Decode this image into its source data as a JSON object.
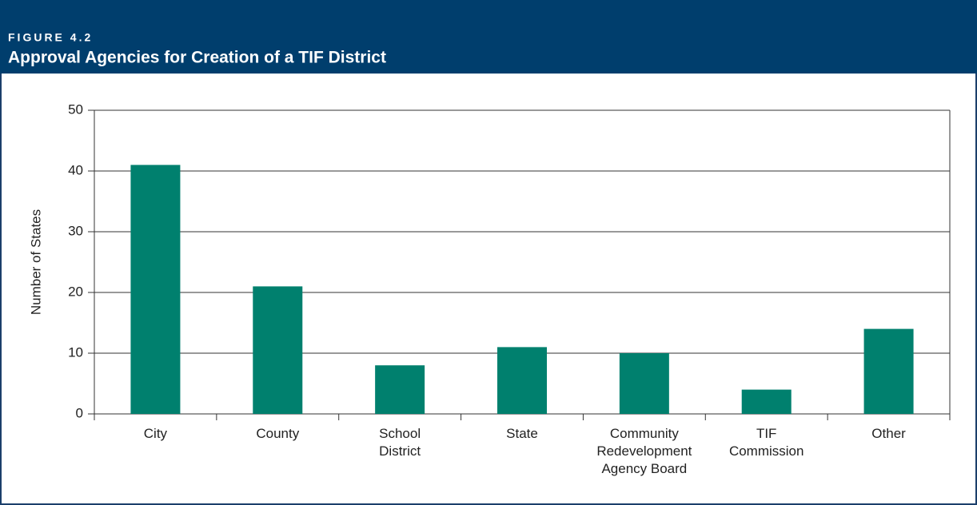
{
  "figure_label": "FIGURE 4.2",
  "chart_data": {
    "type": "bar",
    "title": "Approval Agencies for Creation of a TIF District",
    "y_label": "Number of States",
    "categories": [
      "City",
      "County",
      "School\nDistrict",
      "State",
      "Community\nRedevelopment\nAgency Board",
      "TIF\nCommission",
      "Other"
    ],
    "values": [
      41,
      21,
      8,
      11,
      10,
      4,
      14
    ],
    "color": "#00806e",
    "ylim": [
      0,
      50
    ],
    "yticks": [
      0,
      10,
      20,
      30,
      40,
      50
    ],
    "grid": true
  }
}
